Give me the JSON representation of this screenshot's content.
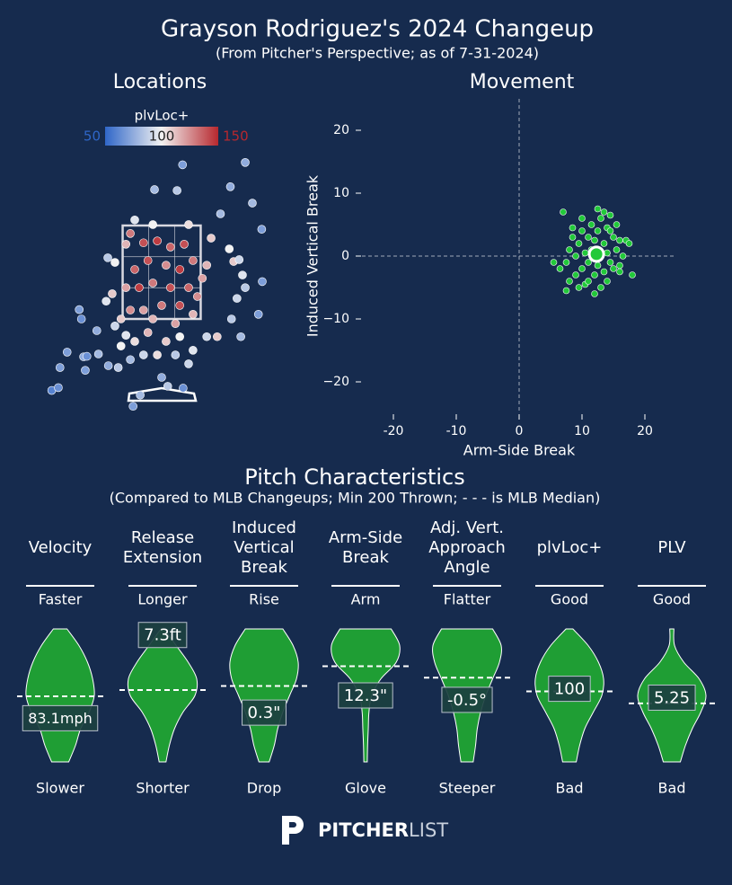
{
  "header": {
    "title": "Grayson Rodriguez's 2024 Changeup",
    "subtitle": "(From Pitcher's Perspective; as of 7-31-2024)"
  },
  "chart_data": [
    {
      "type": "location",
      "title": "Locations",
      "colorbar_label": "plvLoc+",
      "clim": [
        50,
        150
      ],
      "colorbar_ticks": [
        50,
        100,
        150
      ],
      "colormap": [
        "#2f66c8",
        "#f2f2f2",
        "#b7282e"
      ],
      "xlim": [
        -2.5,
        2.5
      ],
      "ylim": [
        -0.5,
        5.0
      ],
      "x": [
        0.38,
        1.52,
        -0.13,
        0.28,
        1.25,
        1.07,
        1.82,
        1.65,
        -2.0,
        -1.88,
        -1.85,
        -1.72,
        -1.42,
        -1.36,
        -1.39,
        -1.18,
        -1.5,
        -1.46,
        -1.15,
        -0.97,
        -0.79,
        -0.52,
        -0.39,
        0,
        0.39,
        0.11,
        0.49,
        1.76,
        1.44,
        1.52,
        1.83,
        1.37,
        1.27,
        1.01,
        0.82,
        1.47,
        1.31,
        1.41,
        1.23,
        -0.57,
        -0.33,
        -0.08,
        0.16,
        0.41,
        0.57,
        0.33,
        0.08,
        -0.25,
        -0.49,
        -0.65,
        -0.41,
        -0.16,
        0.16,
        0.49,
        0.65,
        0.33,
        0,
        -0.33,
        -0.57,
        -0.74,
        -0.16,
        0.25,
        0.57,
        0.74,
        0.82,
        0.9,
        0.49,
        -0.16,
        -0.49,
        -0.65,
        -0.85,
        -0.98,
        -0.9,
        -1.01,
        -0.85,
        -0.65,
        -0.49,
        -0.25,
        0.08,
        0.33,
        0.57,
        -0.33,
        -0.57,
        -0.08,
        0.25,
        -0.74
      ],
      "y": [
        4.8,
        4.85,
        4.27,
        4.25,
        4.33,
        3.75,
        3.42,
        3.98,
        -0.03,
        0.03,
        0.46,
        0.79,
        0.69,
        0.7,
        0.4,
        1.25,
        1.7,
        1.5,
        0.75,
        0.5,
        0.46,
        -0.37,
        -0.13,
        0.25,
        0.02,
        0.06,
        0.54,
        1.6,
        1.12,
        2.17,
        2.3,
        1.94,
        1.5,
        1.12,
        1.12,
        2.44,
        2.73,
        2.77,
        3.0,
        3.33,
        3.13,
        3.17,
        3.04,
        3.1,
        2.75,
        2.56,
        2.65,
        2.75,
        2.56,
        2.17,
        2.17,
        2.27,
        2.17,
        2.17,
        1.98,
        1.79,
        1.79,
        1.69,
        1.69,
        1.5,
        1.5,
        1.4,
        1.6,
        2.37,
        2.65,
        3.23,
        3.52,
        3.52,
        3.62,
        3.1,
        2.71,
        2.81,
        2.04,
        1.88,
        1.35,
        1.15,
        1.02,
        1.21,
        1.02,
        1.12,
        0.83,
        0.73,
        0.63,
        0.73,
        0.73,
        0.92
      ],
      "values": [
        70,
        75,
        80,
        85,
        75,
        80,
        70,
        80,
        60,
        65,
        70,
        70,
        75,
        65,
        70,
        75,
        70,
        65,
        80,
        75,
        85,
        70,
        80,
        75,
        65,
        85,
        90,
        70,
        80,
        85,
        70,
        90,
        85,
        110,
        90,
        95,
        110,
        90,
        100,
        130,
        140,
        145,
        135,
        140,
        130,
        145,
        125,
        140,
        135,
        120,
        145,
        130,
        140,
        135,
        125,
        140,
        130,
        120,
        125,
        110,
        115,
        120,
        115,
        120,
        115,
        110,
        105,
        100,
        95,
        115,
        100,
        85,
        110,
        95,
        90,
        95,
        105,
        115,
        110,
        100,
        95,
        90,
        80,
        105,
        85,
        100
      ]
    },
    {
      "type": "scatter",
      "title": "Movement",
      "xlabel": "Arm-Side Break",
      "ylabel": "Induced Vertical Break",
      "color": "#22c93a",
      "xlim": [
        -25,
        25
      ],
      "ylim": [
        -25,
        25
      ],
      "xticks": [
        -20,
        -10,
        0,
        10,
        20
      ],
      "yticks": [
        {
          "value": -20,
          "label": "−20"
        },
        {
          "value": -10,
          "label": "−10"
        },
        0,
        10,
        20
      ],
      "x": [
        7,
        5.5,
        6.5,
        7.5,
        8,
        7.5,
        8,
        8.5,
        9,
        9,
        9.5,
        10,
        10,
        10.5,
        10.5,
        11,
        11,
        11.5,
        11.5,
        12,
        12,
        12.5,
        12.5,
        13,
        13,
        13,
        13.5,
        13.5,
        14,
        14,
        14,
        14.5,
        14.5,
        15,
        15,
        15.5,
        15.5,
        16,
        16,
        16.5,
        17,
        17.5,
        18,
        12.5,
        13.5,
        11,
        9.5,
        8.5,
        10,
        12,
        16,
        14.5
      ],
      "y": [
        7,
        -1,
        -2,
        -5.5,
        -4,
        -1,
        1,
        3,
        -3,
        0,
        2,
        4,
        -2,
        0.5,
        -4.5,
        3,
        -1,
        5,
        1,
        -3,
        2.5,
        4,
        -1.5,
        0,
        6,
        -5,
        2,
        -2.5,
        4.5,
        0.5,
        -4,
        6.5,
        -1,
        3,
        -2,
        1,
        5,
        -1.5,
        2.5,
        0,
        2.5,
        2,
        -3,
        7.5,
        7,
        -4,
        -5,
        4.5,
        6,
        -6,
        -2.5,
        4
      ],
      "average": {
        "x": 12.3,
        "y": 0.3
      }
    },
    {
      "type": "violin",
      "title": "Pitch Characteristics",
      "subtitle": "(Compared to MLB Changeups; Min 200 Thrown; - - - is MLB Median)",
      "color": "#1f9e34",
      "metrics": [
        {
          "name": [
            "Velocity"
          ],
          "top": "Faster",
          "bottom": "Slower",
          "ylim": [
            78.5,
            92.5
          ],
          "median": 85.4,
          "value": 83.1,
          "value_label": "83.1mph",
          "density": [
            0.2,
            0.55,
            0.8,
            0.95,
            1.0,
            0.85,
            0.6,
            0.45,
            0.25
          ]
        },
        {
          "name": [
            "Release",
            "Extension"
          ],
          "top": "Longer",
          "bottom": "Shorter",
          "ylim": [
            5.2,
            7.4
          ],
          "median": 6.39,
          "value": 7.3,
          "value_label": "7.3ft",
          "density": [
            0.05,
            0.4,
            0.75,
            1.0,
            0.95,
            0.6,
            0.35,
            0.2,
            0.1
          ]
        },
        {
          "name": [
            "Induced",
            "Vertical",
            "Break"
          ],
          "top": "Rise",
          "bottom": "Drop",
          "ylim": [
            -8.6,
            15.4
          ],
          "median": 5.1,
          "value": 0.3,
          "value_label": "0.3\"",
          "density": [
            0.55,
            0.85,
            1.0,
            0.95,
            0.75,
            0.55,
            0.4,
            0.3,
            0.15
          ]
        },
        {
          "name": [
            "Arm-Side",
            "Break"
          ],
          "top": "Arm",
          "bottom": "Glove",
          "ylim": [
            2.3,
            22.3
          ],
          "median": 16.7,
          "value": 12.3,
          "value_label": "12.3\"",
          "density": [
            0.75,
            1.0,
            0.9,
            0.45,
            0.18,
            0.1,
            0.08,
            0.06,
            0.05
          ]
        },
        {
          "name": [
            "Adj. Vert.",
            "Approach",
            "Angle"
          ],
          "top": "Flatter",
          "bottom": "Steeper",
          "ylim": [
            -1.9,
            1.1
          ],
          "median": 0.0,
          "value": -0.5,
          "value_label": "-0.5°",
          "density": [
            0.75,
            1.0,
            0.95,
            0.75,
            0.55,
            0.4,
            0.3,
            0.25,
            0.18
          ]
        },
        {
          "name": [
            "plvLoc+"
          ],
          "top": "Good",
          "bottom": "Bad",
          "ylim": [
            78,
            118
          ],
          "median": 99.2,
          "value": 100,
          "value_label": "100",
          "density": [
            0.1,
            0.55,
            0.85,
            1.0,
            0.95,
            0.7,
            0.45,
            0.3,
            0.2
          ]
        },
        {
          "name": [
            "PLV"
          ],
          "top": "Good",
          "bottom": "Bad",
          "ylim": [
            3.8,
            6.8
          ],
          "median": 5.12,
          "value": 5.25,
          "value_label": "5.25",
          "density": [
            0.06,
            0.08,
            0.35,
            0.8,
            1.0,
            0.85,
            0.6,
            0.4,
            0.25
          ]
        }
      ]
    }
  ],
  "footer": {
    "logo_bold": "PITCHER",
    "logo_light": "LIST"
  }
}
